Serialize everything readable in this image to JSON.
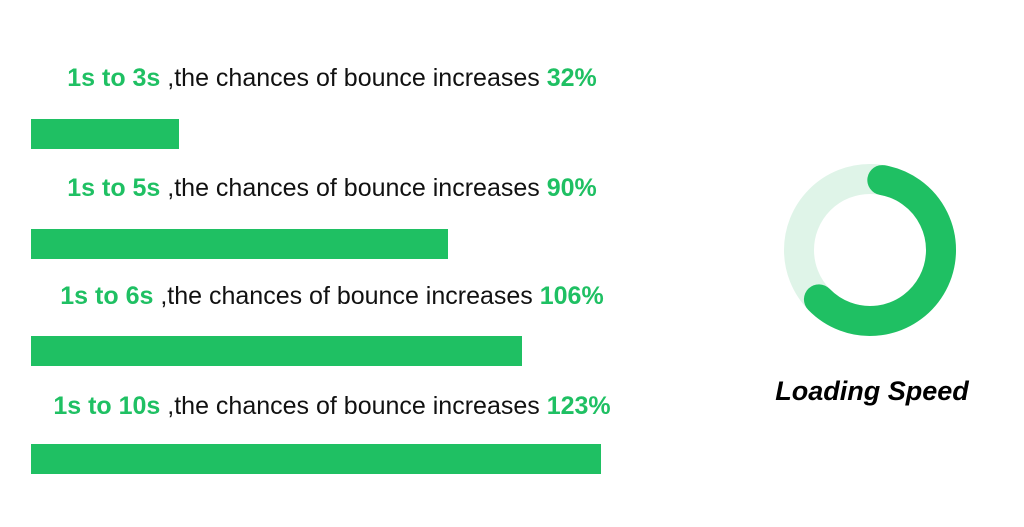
{
  "chart_data": {
    "type": "bar",
    "orientation": "horizontal",
    "categories": [
      "1s to 3s",
      "1s to 5s",
      "1s to 6s",
      "1s to 10s"
    ],
    "values": [
      32,
      90,
      106,
      123
    ],
    "label_middle": " ,the chances of bounce increases ",
    "value_labels": [
      "32%",
      "90%",
      "106%",
      "123%"
    ],
    "unit": "%",
    "xlim": [
      0,
      130
    ],
    "grid": false,
    "legend": "none",
    "colors": {
      "accent": "#1fc063",
      "text": "#111111"
    }
  },
  "gauge": {
    "title": "Loading Speed",
    "fill_fraction": 0.6,
    "colors": {
      "fill": "#1fc063",
      "track": "#dff4e8"
    }
  }
}
